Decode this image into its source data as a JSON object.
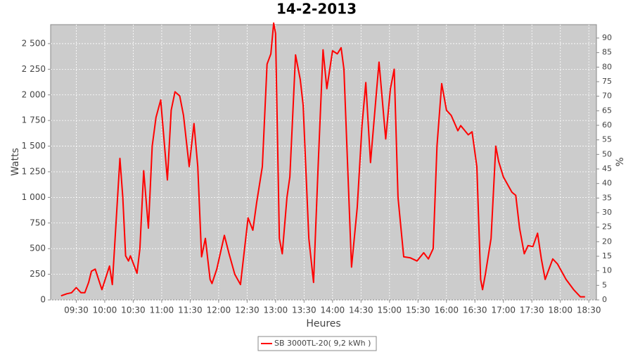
{
  "chart_data": {
    "type": "line",
    "title": "14-2-2013",
    "x_label": "Heures",
    "y_label": "Watts",
    "y2_label": "%",
    "x": [
      "09:14",
      "09:20",
      "09:25",
      "09:30",
      "09:35",
      "09:39",
      "09:43",
      "09:46",
      "09:50",
      "09:57",
      "10:05",
      "10:08",
      "10:16",
      "10:19",
      "10:22",
      "10:25",
      "10:27",
      "10:34",
      "10:37",
      "10:41",
      "10:46",
      "10:50",
      "10:54",
      "10:59",
      "11:06",
      "11:10",
      "11:14",
      "11:19",
      "11:23",
      "11:29",
      "11:34",
      "11:38",
      "11:42",
      "11:46",
      "11:51",
      "11:53",
      "11:58",
      "12:06",
      "12:11",
      "12:17",
      "12:23",
      "12:31",
      "12:36",
      "12:40",
      "12:46",
      "12:51",
      "12:55",
      "12:58",
      "13:00",
      "13:04",
      "13:07",
      "13:12",
      "13:15",
      "13:21",
      "13:26",
      "13:29",
      "13:35",
      "13:40",
      "13:45",
      "13:50",
      "13:54",
      "14:00",
      "14:05",
      "14:09",
      "14:12",
      "14:20",
      "14:26",
      "14:31",
      "14:35",
      "14:40",
      "14:46",
      "14:49",
      "14:56",
      "15:01",
      "15:05",
      "15:09",
      "15:15",
      "15:22",
      "15:29",
      "15:36",
      "15:41",
      "15:46",
      "15:50",
      "15:55",
      "16:00",
      "16:05",
      "16:12",
      "16:15",
      "16:23",
      "16:27",
      "16:32",
      "16:36",
      "16:38",
      "16:41",
      "16:47",
      "16:52",
      "16:55",
      "17:00",
      "17:09",
      "17:13",
      "17:17",
      "17:22",
      "17:26",
      "17:31",
      "17:36",
      "17:40",
      "17:44",
      "17:52",
      "17:57",
      "18:06",
      "18:14",
      "18:21",
      "18:26"
    ],
    "series": [
      {
        "name": "SB 3000TL-20( 9,2 kWh )",
        "color": "#ff0000",
        "values": [
          40,
          60,
          70,
          120,
          70,
          70,
          170,
          280,
          300,
          100,
          330,
          150,
          1380,
          1000,
          430,
          380,
          430,
          260,
          500,
          1260,
          700,
          1500,
          1780,
          1950,
          1170,
          1850,
          2030,
          1990,
          1800,
          1300,
          1720,
          1300,
          420,
          600,
          200,
          160,
          300,
          630,
          450,
          250,
          150,
          800,
          680,
          950,
          1300,
          2300,
          2400,
          2700,
          2600,
          600,
          450,
          1000,
          1200,
          2390,
          2150,
          1900,
          600,
          170,
          1350,
          2440,
          2060,
          2430,
          2400,
          2460,
          2250,
          320,
          900,
          1700,
          2120,
          1340,
          2000,
          2320,
          1570,
          2060,
          2250,
          1000,
          420,
          410,
          380,
          460,
          400,
          500,
          1500,
          2110,
          1850,
          1800,
          1650,
          1700,
          1610,
          1640,
          1300,
          200,
          100,
          250,
          600,
          1500,
          1350,
          1200,
          1050,
          1020,
          700,
          450,
          530,
          520,
          650,
          400,
          200,
          400,
          350,
          200,
          100,
          30,
          30
        ]
      }
    ],
    "xlim": [
      "09:03",
      "18:38"
    ],
    "xticks": [
      "09:30",
      "10:00",
      "10:30",
      "11:00",
      "11:30",
      "12:00",
      "12:30",
      "13:00",
      "13:30",
      "14:00",
      "14:30",
      "15:00",
      "15:30",
      "16:00",
      "16:30",
      "17:00",
      "17:30",
      "18:00",
      "18:30"
    ],
    "ylim": [
      0,
      2685
    ],
    "yticks": [
      0,
      250,
      500,
      750,
      {
        "value": 1000,
        "label": "1 000"
      },
      {
        "value": 1250,
        "label": "1 250"
      },
      {
        "value": 1500,
        "label": "1 500"
      },
      {
        "value": 1750,
        "label": "1 750"
      },
      {
        "value": 2000,
        "label": "2 000"
      },
      {
        "value": 2250,
        "label": "2 250"
      },
      {
        "value": 2500,
        "label": "2 500"
      }
    ],
    "y2lim": [
      0,
      94.6
    ],
    "y2ticks": [
      0,
      5,
      10,
      15,
      20,
      25,
      30,
      35,
      40,
      45,
      50,
      55,
      60,
      65,
      70,
      75,
      80,
      85,
      90
    ],
    "grid": true,
    "background": "#cccccc"
  }
}
